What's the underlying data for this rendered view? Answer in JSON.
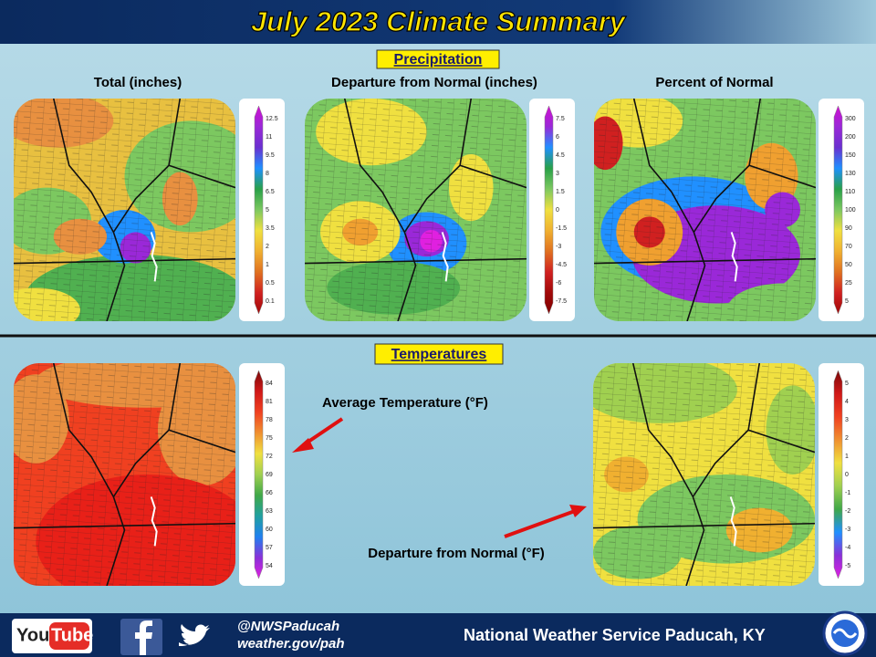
{
  "header": {
    "title": "July 2023 Climate Summary"
  },
  "precipitation": {
    "heading": "Precipitation",
    "panels": [
      {
        "title": "Total (inches)",
        "legend": [
          "12.5",
          "11",
          "9.5",
          "8",
          "6.5",
          "5",
          "3.5",
          "2",
          "1",
          "0.5",
          "0.1"
        ]
      },
      {
        "title": "Departure from Normal (inches)",
        "legend": [
          "7.5",
          "6",
          "4.5",
          "3",
          "1.5",
          "0",
          "-1.5",
          "-3",
          "-4.5",
          "-6",
          "-7.5"
        ]
      },
      {
        "title": "Percent of Normal",
        "legend": [
          "300",
          "200",
          "150",
          "130",
          "110",
          "100",
          "90",
          "70",
          "50",
          "25",
          "5"
        ]
      }
    ]
  },
  "temperatures": {
    "heading": "Temperatures",
    "panels": [
      {
        "title": "Average Temperature (°F)",
        "legend": [
          "84",
          "81",
          "78",
          "75",
          "72",
          "69",
          "66",
          "63",
          "60",
          "57",
          "54"
        ]
      },
      {
        "title": "Departure from Normal (°F)",
        "legend": [
          "5",
          "4",
          "3",
          "2",
          "1",
          "0",
          "-1",
          "-2",
          "-3",
          "-4",
          "-5"
        ]
      }
    ]
  },
  "footer": {
    "youtube": [
      "You",
      "Tube"
    ],
    "handle": "@NWSPaducah",
    "website": "weather.gov/pah",
    "office": "National Weather Service Paducah, KY"
  }
}
